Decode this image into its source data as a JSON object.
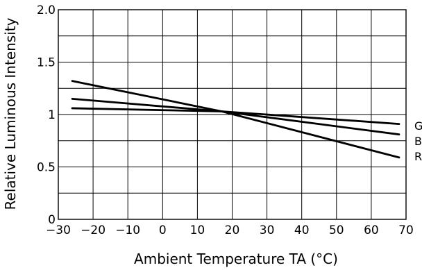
{
  "chart_data": {
    "type": "line",
    "title": "",
    "xlabel": "Ambient Temperature TA (°C)",
    "ylabel": "Relative Luminous Intensity",
    "xlim": [
      -30,
      70
    ],
    "ylim": [
      0,
      2.0
    ],
    "grid": true,
    "x_ticks": [
      -30,
      -20,
      -10,
      0,
      10,
      20,
      30,
      40,
      50,
      60,
      70
    ],
    "x_tick_labels": [
      "−30",
      "−20",
      "−10",
      "0",
      "10",
      "20",
      "30",
      "40",
      "50",
      "60",
      "70"
    ],
    "y_ticks": [
      0,
      0.5,
      1,
      1.5,
      2.0
    ],
    "y_tick_labels": [
      "0",
      "0.5",
      "1",
      "1.5",
      "2.0"
    ],
    "series": [
      {
        "name": "G",
        "x": [
          -26,
          17,
          68
        ],
        "y": [
          1.06,
          1.03,
          0.91
        ]
      },
      {
        "name": "B",
        "x": [
          -26,
          17,
          68
        ],
        "y": [
          1.15,
          1.03,
          0.81
        ]
      },
      {
        "name": "R",
        "x": [
          -26,
          17,
          68
        ],
        "y": [
          1.32,
          1.03,
          0.59
        ]
      }
    ]
  }
}
